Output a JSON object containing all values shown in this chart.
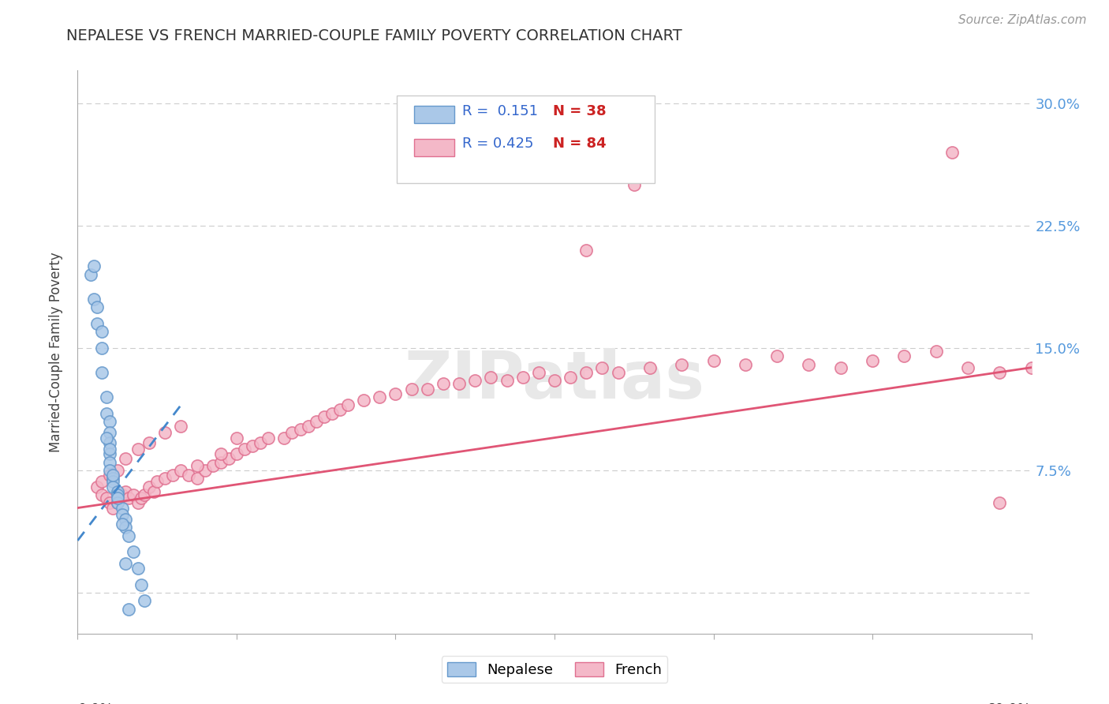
{
  "title": "NEPALESE VS FRENCH MARRIED-COUPLE FAMILY POVERTY CORRELATION CHART",
  "source": "Source: ZipAtlas.com",
  "ylabel": "Married-Couple Family Poverty",
  "xlim": [
    0.0,
    0.6
  ],
  "ylim": [
    -0.025,
    0.32
  ],
  "ytick_vals": [
    0.0,
    0.075,
    0.15,
    0.225,
    0.3
  ],
  "ytick_labels": [
    "",
    "7.5%",
    "15.0%",
    "22.5%",
    "30.0%"
  ],
  "legend_r_nepalese": "0.151",
  "legend_n_nepalese": "38",
  "legend_r_french": "0.425",
  "legend_n_french": "84",
  "nepalese_face_color": "#aac8e8",
  "nepalese_edge_color": "#6699cc",
  "french_face_color": "#f4b8c8",
  "french_edge_color": "#e07090",
  "nepalese_line_color": "#4488cc",
  "french_line_color": "#e05575",
  "grid_color": "#cccccc",
  "title_color": "#333333",
  "source_color": "#999999",
  "ytick_color": "#5599dd",
  "xtick_color": "#333333",
  "watermark_color": "#e8e8e8",
  "nepalese_x": [
    0.008,
    0.01,
    0.012,
    0.015,
    0.015,
    0.018,
    0.018,
    0.02,
    0.02,
    0.02,
    0.02,
    0.02,
    0.02,
    0.022,
    0.022,
    0.022,
    0.025,
    0.025,
    0.025,
    0.028,
    0.028,
    0.03,
    0.03,
    0.032,
    0.035,
    0.038,
    0.04,
    0.042,
    0.01,
    0.012,
    0.015,
    0.018,
    0.02,
    0.022,
    0.025,
    0.028,
    0.03,
    0.032
  ],
  "nepalese_y": [
    0.195,
    0.18,
    0.165,
    0.15,
    0.135,
    0.12,
    0.11,
    0.105,
    0.098,
    0.092,
    0.085,
    0.08,
    0.075,
    0.07,
    0.068,
    0.065,
    0.062,
    0.06,
    0.055,
    0.052,
    0.048,
    0.045,
    0.04,
    0.035,
    0.025,
    0.015,
    0.005,
    -0.005,
    0.2,
    0.175,
    0.16,
    0.095,
    0.088,
    0.072,
    0.058,
    0.042,
    0.018,
    -0.01
  ],
  "french_x": [
    0.012,
    0.015,
    0.018,
    0.02,
    0.022,
    0.025,
    0.028,
    0.03,
    0.032,
    0.035,
    0.038,
    0.04,
    0.042,
    0.045,
    0.048,
    0.05,
    0.055,
    0.06,
    0.065,
    0.07,
    0.075,
    0.08,
    0.085,
    0.09,
    0.095,
    0.1,
    0.105,
    0.11,
    0.115,
    0.12,
    0.13,
    0.135,
    0.14,
    0.145,
    0.15,
    0.155,
    0.16,
    0.165,
    0.17,
    0.18,
    0.19,
    0.2,
    0.21,
    0.22,
    0.23,
    0.24,
    0.25,
    0.26,
    0.27,
    0.28,
    0.29,
    0.3,
    0.31,
    0.32,
    0.33,
    0.34,
    0.36,
    0.38,
    0.4,
    0.42,
    0.44,
    0.46,
    0.48,
    0.5,
    0.52,
    0.54,
    0.56,
    0.58,
    0.6,
    0.015,
    0.02,
    0.025,
    0.03,
    0.038,
    0.045,
    0.055,
    0.065,
    0.075,
    0.09,
    0.1,
    0.32,
    0.35,
    0.55,
    0.58
  ],
  "french_y": [
    0.065,
    0.06,
    0.058,
    0.055,
    0.052,
    0.055,
    0.06,
    0.062,
    0.058,
    0.06,
    0.055,
    0.058,
    0.06,
    0.065,
    0.062,
    0.068,
    0.07,
    0.072,
    0.075,
    0.072,
    0.07,
    0.075,
    0.078,
    0.08,
    0.082,
    0.085,
    0.088,
    0.09,
    0.092,
    0.095,
    0.095,
    0.098,
    0.1,
    0.102,
    0.105,
    0.108,
    0.11,
    0.112,
    0.115,
    0.118,
    0.12,
    0.122,
    0.125,
    0.125,
    0.128,
    0.128,
    0.13,
    0.132,
    0.13,
    0.132,
    0.135,
    0.13,
    0.132,
    0.135,
    0.138,
    0.135,
    0.138,
    0.14,
    0.142,
    0.14,
    0.145,
    0.14,
    0.138,
    0.142,
    0.145,
    0.148,
    0.138,
    0.135,
    0.138,
    0.068,
    0.072,
    0.075,
    0.082,
    0.088,
    0.092,
    0.098,
    0.102,
    0.078,
    0.085,
    0.095,
    0.21,
    0.25,
    0.27,
    0.055
  ],
  "nep_line_x0": 0.0,
  "nep_line_x1": 0.065,
  "nep_line_y0": 0.032,
  "nep_line_y1": 0.115,
  "fre_line_x0": 0.0,
  "fre_line_x1": 0.6,
  "fre_line_y0": 0.052,
  "fre_line_y1": 0.138
}
